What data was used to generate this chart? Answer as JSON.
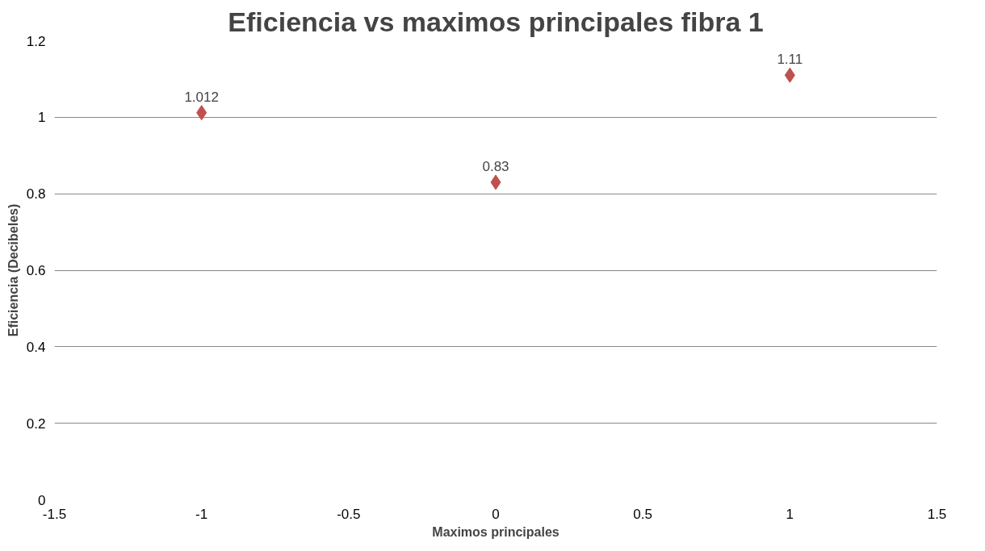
{
  "chart_data": {
    "type": "scatter",
    "title": "Eficiencia vs maximos principales fibra 1",
    "xlabel": "Maximos principales",
    "ylabel": "Eficiencia (Decibeles)",
    "x": [
      -1,
      0,
      1
    ],
    "series": [
      {
        "color": "#c0504d",
        "values": [
          1.012,
          0.83,
          1.11
        ]
      }
    ],
    "data_labels": true,
    "marker": "diamond",
    "grid": "y",
    "xlim": [
      -1.5,
      1.5
    ],
    "xticks": [
      -1.5,
      -1,
      -0.5,
      0,
      0.5,
      1,
      1.5
    ],
    "ylim": [
      0,
      1.2
    ],
    "yticks": [
      0,
      0.2,
      0.4,
      0.6,
      0.8,
      1,
      1.2
    ]
  }
}
